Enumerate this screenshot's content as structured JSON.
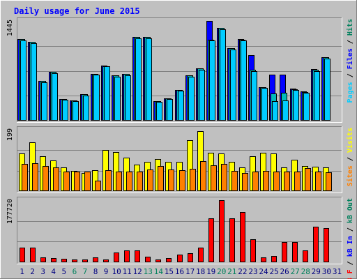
{
  "chart_data": {
    "type": "bar",
    "title": "Daily usage for June 2015",
    "days": [
      "1",
      "2",
      "3",
      "4",
      "5",
      "6",
      "7",
      "8",
      "9",
      "10",
      "11",
      "12",
      "13",
      "14",
      "15",
      "16",
      "17",
      "18",
      "19",
      "20",
      "21",
      "22",
      "23",
      "24",
      "25",
      "26",
      "27",
      "28",
      "29",
      "30",
      "31"
    ],
    "weekend_days": [
      "6",
      "7",
      "13",
      "14",
      "20",
      "21",
      "27",
      "28"
    ],
    "panels": [
      {
        "id": "pages-files-hits",
        "ymax_label": "1445",
        "ymax": 1445,
        "right_label": {
          "parts": [
            "Pages",
            " / ",
            "Files",
            " / ",
            "Hits"
          ]
        },
        "series": [
          {
            "name": "Hits",
            "color": "#0000FF",
            "values": [
              1180,
              1145,
              580,
              710,
              315,
              295,
              380,
              680,
              795,
              660,
              680,
              1210,
              1215,
              285,
              325,
              445,
              660,
              760,
              1450,
              1345,
              1055,
              1180,
              950,
              490,
              670,
              670,
              460,
              425,
              750,
              920,
              null
            ]
          },
          {
            "name": "Files",
            "color": "#00BBBB",
            "values": [
              1180,
              1140,
              578,
              708,
              315,
              292,
              380,
              678,
              793,
              660,
              678,
              1210,
              1212,
              283,
              322,
              441,
              658,
              757,
              1175,
              1345,
              1050,
              1175,
              735,
              488,
              398,
              403,
              457,
              419,
              735,
              922,
              null
            ]
          },
          {
            "name": "Pages",
            "color": "#00CCFF",
            "values": [
              1165,
              1120,
              560,
              690,
              305,
              280,
              365,
              665,
              785,
              640,
              660,
              1190,
              1195,
              270,
              310,
              430,
              640,
              740,
              1160,
              1325,
              1035,
              1160,
              720,
              470,
              280,
              290,
              440,
              400,
              720,
              900,
              null
            ]
          }
        ]
      },
      {
        "id": "visits-sites",
        "ymax_label": "199",
        "ymax": 199,
        "right_label": {
          "parts": [
            "Sites",
            " / ",
            "Visits"
          ]
        },
        "series": [
          {
            "name": "Visits",
            "color": "#FFFF00",
            "values": [
              122,
              159,
              112,
              99,
              77,
              66,
              58,
              67,
              133,
              127,
              108,
              87,
              96,
              103,
              95,
              95,
              165,
              194,
              124,
              121,
              96,
              77,
              112,
              125,
              121,
              76,
              102,
              81,
              80,
              77,
              null
            ]
          },
          {
            "name": "Sites",
            "color": "#FF8000",
            "values": [
              89,
              91,
              81,
              77,
              64,
              63,
              64,
              35,
              67,
              63,
              63,
              63,
              69,
              82,
              70,
              68,
              72,
              97,
              84,
              88,
              66,
              58,
              64,
              65,
              63,
              63,
              63,
              75,
              64,
              62,
              null
            ]
          }
        ]
      },
      {
        "id": "kbytes",
        "ymax_label": "177720",
        "ymax": 177720,
        "right_label": {
          "parts": [
            "kB F",
            " / ",
            "kB In",
            " / ",
            "kB Out"
          ]
        },
        "series": [
          {
            "name": "kB F",
            "color": "#FF0000",
            "values": [
              41000,
              41000,
              13000,
              12000,
              9000,
              8000,
              8000,
              14000,
              8000,
              27000,
              33000,
              33000,
              15000,
              8000,
              12000,
              21000,
              26000,
              42000,
              125000,
              177720,
              125000,
              144000,
              66000,
              13000,
              17000,
              57000,
              57000,
              33000,
              101000,
              97000,
              null
            ]
          }
        ]
      }
    ],
    "colors": {
      "background": "#C0C0C0",
      "frame": "#808080",
      "title": "#0000FF",
      "gridline": "#808080",
      "weekend_label": "#00805C",
      "weekday_label": "#000080"
    }
  },
  "label_colors": {
    "Pages": "#00CCFF",
    "Files": "#0000FF",
    "Hits": "#00805C",
    "Sites": "#FF8000",
    "Visits": "#FFFF00",
    "kB F": "#FF0000",
    "kB In": "#0000FF",
    "kB Out": "#00805C",
    "sep": "#000000"
  }
}
